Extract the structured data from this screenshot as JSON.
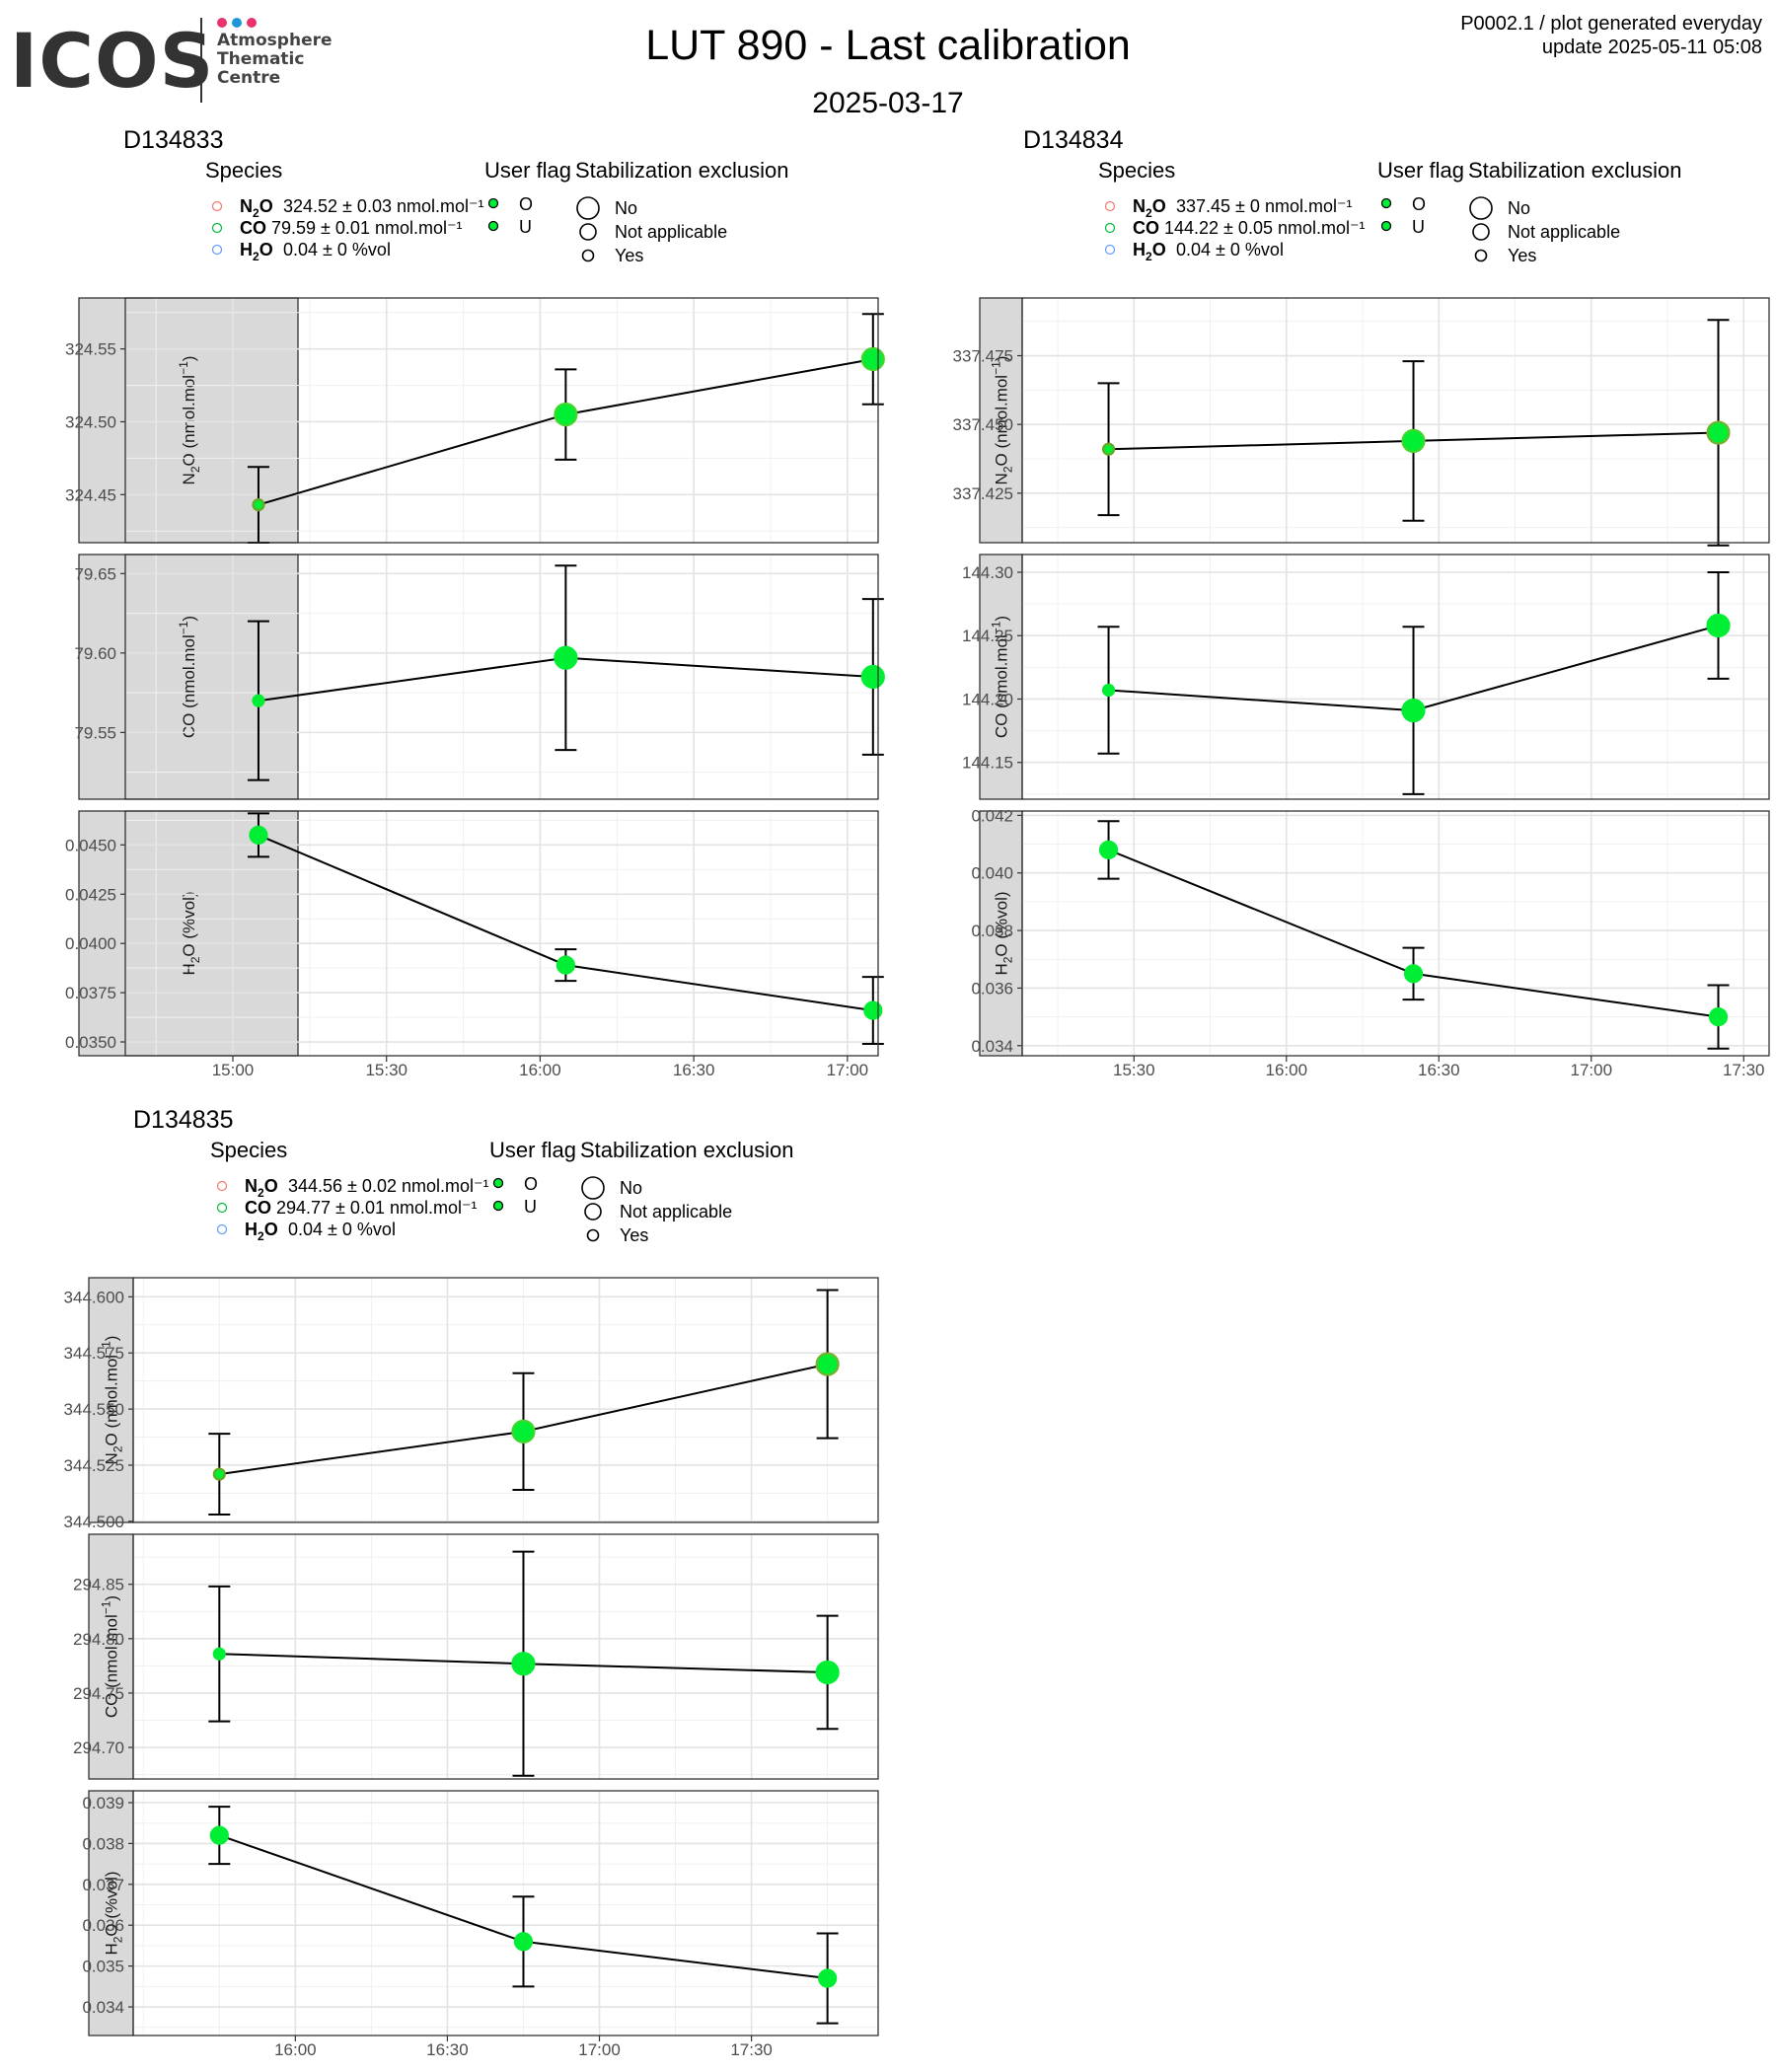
{
  "logo": {
    "name": "ICOS",
    "subtitle": [
      "Atmosphere",
      "Thematic",
      "Centre"
    ],
    "dots": [
      "#e8336d",
      "#1e96d8",
      "#e8336d"
    ]
  },
  "header": {
    "title": "LUT 890 - Last calibration",
    "date": "2025-03-17",
    "meta_line1": "P0002.1 / plot generated everyday",
    "meta_line2": "update  2025-05-11 05:08"
  },
  "legend_titles": {
    "species": "Species",
    "user_flag": "User flag",
    "stabilization": "Stabilization exclusion"
  },
  "legend_flags": [
    "O",
    "U"
  ],
  "legend_stabilization": [
    "No",
    "Not applicable",
    "Yes"
  ],
  "species_colors": {
    "N2O": "#f8766d",
    "CO": "#00ba38",
    "H2O": "#619cff"
  },
  "point_color": "#00ee33",
  "chart_data": [
    {
      "type": "line",
      "title": "D134833",
      "legend": [
        {
          "species": "N2O",
          "text": "324.52 ± 0.03 nmol.mol⁻¹"
        },
        {
          "species": "CO",
          "text": "79.59 ± 0.01 nmol.mol⁻¹"
        },
        {
          "species": "H2O",
          "text": "0.04 ± 0 %vol"
        }
      ],
      "xticks": [
        "15:00",
        "15:30",
        "16:00",
        "16:30",
        "17:00"
      ],
      "xtick_min": [
        0,
        30,
        60,
        90,
        120
      ],
      "xlim_min": [
        -21,
        126
      ],
      "x_min": [
        5,
        65,
        125
      ],
      "x_labels": [
        "15:05",
        "16:05",
        "17:05"
      ],
      "panels": [
        {
          "ylabel": "N2O (nmol.mol-1)",
          "ylim": [
            324.417,
            324.585
          ],
          "yticks": [
            324.45,
            324.5,
            324.55
          ],
          "ytick_labels": [
            "324.45",
            "324.50",
            "324.55"
          ],
          "minor_step": 0.025,
          "values": [
            324.443,
            324.505,
            324.543
          ],
          "err": [
            0.026,
            0.031,
            0.031
          ],
          "sizes": [
            1,
            3,
            3
          ],
          "colors": [
            "#6aa624",
            "#44d62c",
            "#44d62c"
          ]
        },
        {
          "ylabel": "CO (nmol.mol-1)",
          "ylim": [
            79.508,
            79.662
          ],
          "yticks": [
            79.55,
            79.6,
            79.65
          ],
          "ytick_labels": [
            "79.55",
            "79.60",
            "79.65"
          ],
          "minor_step": 0.025,
          "values": [
            79.57,
            79.597,
            79.585
          ],
          "err": [
            0.05,
            0.058,
            0.049
          ],
          "sizes": [
            1,
            3,
            3
          ],
          "colors": [
            "#00ee33",
            "#00ee33",
            "#00ee33"
          ]
        },
        {
          "ylabel": "H2O (%vol)",
          "ylim": [
            0.0343,
            0.04672
          ],
          "yticks": [
            0.035,
            0.0375,
            0.04,
            0.0425,
            0.045
          ],
          "ytick_labels": [
            "0.0350",
            "0.0375",
            "0.0400",
            "0.0425",
            "0.0450"
          ],
          "minor_step": 0.00125,
          "values": [
            0.0455,
            0.0389,
            0.0366
          ],
          "err": [
            0.0011,
            0.0008,
            0.0017
          ],
          "sizes": [
            2,
            2,
            2
          ],
          "colors": [
            "#00ee33",
            "#00ee33",
            "#00ee33"
          ]
        }
      ]
    },
    {
      "type": "line",
      "title": "D134834",
      "legend": [
        {
          "species": "N2O",
          "text": "337.45 ± 0 nmol.mol⁻¹"
        },
        {
          "species": "CO",
          "text": "144.22 ± 0.05 nmol.mol⁻¹"
        },
        {
          "species": "H2O",
          "text": "0.04 ± 0 %vol"
        }
      ],
      "xticks": [
        "15:30",
        "16:00",
        "16:30",
        "17:00",
        "17:30"
      ],
      "xtick_min": [
        30,
        60,
        90,
        120,
        150
      ],
      "xlim_min": [
        8,
        155
      ],
      "x_min": [
        25,
        85,
        145
      ],
      "x_labels": [
        "15:25",
        "16:25",
        "17:25"
      ],
      "panels": [
        {
          "ylabel": "N2O (nmol.mol-1)",
          "ylim": [
            337.407,
            337.496
          ],
          "yticks": [
            337.425,
            337.45,
            337.475
          ],
          "ytick_labels": [
            "337.425",
            "337.450",
            "337.475"
          ],
          "minor_step": 0.0125,
          "values": [
            337.441,
            337.444,
            337.447
          ],
          "err": [
            0.024,
            0.029,
            0.041
          ],
          "sizes": [
            1,
            3,
            3
          ],
          "colors": [
            "#6aa624",
            "#44d62c",
            "#78b030"
          ]
        },
        {
          "ylabel": "CO (nmol.mol-1)",
          "ylim": [
            144.121,
            144.314
          ],
          "yticks": [
            144.15,
            144.2,
            144.25,
            144.3
          ],
          "ytick_labels": [
            "144.15",
            "144.20",
            "144.25",
            "144.30"
          ],
          "minor_step": 0.025,
          "values": [
            144.207,
            144.191,
            144.258
          ],
          "err": [
            0.05,
            0.066,
            0.042
          ],
          "sizes": [
            1,
            3,
            3
          ],
          "colors": [
            "#00ee33",
            "#00ee33",
            "#00ee33"
          ]
        },
        {
          "ylabel": "H2O (%vol)",
          "ylim": [
            0.03365,
            0.04215
          ],
          "yticks": [
            0.034,
            0.036,
            0.038,
            0.04,
            0.042
          ],
          "ytick_labels": [
            "0.034",
            "0.036",
            "0.038",
            "0.040",
            "0.042"
          ],
          "minor_step": 0.001,
          "values": [
            0.0408,
            0.0365,
            0.035
          ],
          "err": [
            0.001,
            0.0009,
            0.0011
          ],
          "sizes": [
            2,
            2,
            2
          ],
          "colors": [
            "#00ee33",
            "#00ee33",
            "#00ee33"
          ]
        }
      ]
    },
    {
      "type": "line",
      "title": "D134835",
      "legend": [
        {
          "species": "N2O",
          "text": "344.56 ± 0.02 nmol.mol⁻¹"
        },
        {
          "species": "CO",
          "text": "294.77 ± 0.01 nmol.mol⁻¹"
        },
        {
          "species": "H2O",
          "text": "0.04 ± 0 %vol"
        }
      ],
      "xticks": [
        "16:00",
        "16:30",
        "17:00",
        "17:30"
      ],
      "xtick_min": [
        60,
        90,
        120,
        150
      ],
      "xlim_min": [
        28,
        175
      ],
      "x_min": [
        45,
        105,
        165
      ],
      "x_labels": [
        "15:45",
        "16:45",
        "17:45"
      ],
      "panels": [
        {
          "ylabel": "N2O (nmol.mol-1)",
          "ylim": [
            344.4995,
            344.6085
          ],
          "yticks": [
            344.5,
            344.525,
            344.55,
            344.575,
            344.6
          ],
          "ytick_labels": [
            "344.500",
            "344.525",
            "344.550",
            "344.575",
            "344.600"
          ],
          "minor_step": 0.0125,
          "values": [
            344.521,
            344.54,
            344.57
          ],
          "err": [
            0.018,
            0.026,
            0.033
          ],
          "sizes": [
            1,
            3,
            3
          ],
          "colors": [
            "#6aa624",
            "#44d62c",
            "#78b030"
          ]
        },
        {
          "ylabel": "CO (nmol.mol-1)",
          "ylim": [
            294.671,
            294.896
          ],
          "yticks": [
            294.7,
            294.75,
            294.8,
            294.85
          ],
          "ytick_labels": [
            "294.70",
            "294.75",
            "294.80",
            "294.85"
          ],
          "minor_step": 0.025,
          "values": [
            294.786,
            294.777,
            294.769
          ],
          "err": [
            0.062,
            0.103,
            0.052
          ],
          "sizes": [
            1,
            3,
            3
          ],
          "colors": [
            "#00ee33",
            "#00ee33",
            "#00ee33"
          ]
        },
        {
          "ylabel": "H2O (%vol)",
          "ylim": [
            0.0333,
            0.03929
          ],
          "yticks": [
            0.034,
            0.035,
            0.036,
            0.037,
            0.038,
            0.039
          ],
          "ytick_labels": [
            "0.034",
            "0.035",
            "0.036",
            "0.037",
            "0.038",
            "0.039"
          ],
          "minor_step": 0.0005,
          "values": [
            0.0382,
            0.0356,
            0.0347
          ],
          "err": [
            0.0007,
            0.0011,
            0.0011
          ],
          "sizes": [
            2,
            2,
            2
          ],
          "colors": [
            "#00ee33",
            "#00ee33",
            "#00ee33"
          ]
        }
      ]
    }
  ]
}
